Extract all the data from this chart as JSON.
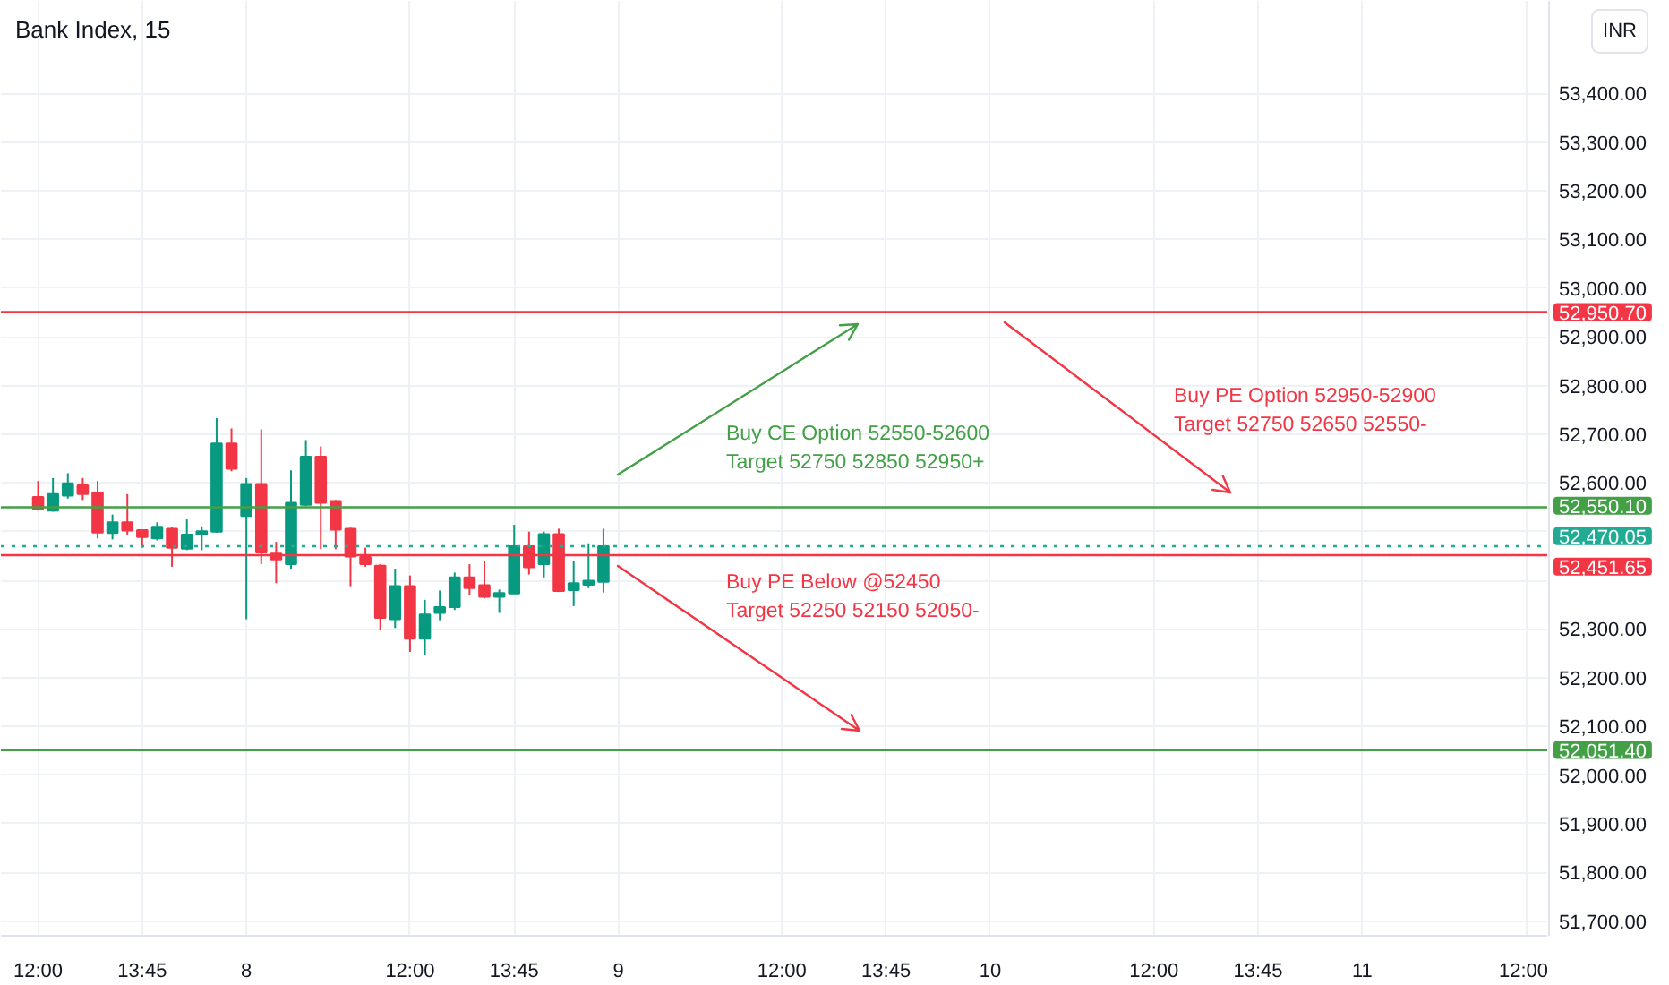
{
  "chart_data": {
    "type": "candlestick",
    "title": "Bank Index, 15",
    "ylabel": "INR",
    "categories": [
      null,
      null,
      "12:00",
      null,
      null,
      null,
      null,
      null,
      null,
      "13:45",
      null,
      null,
      null,
      null,
      null,
      null,
      "8",
      null,
      null,
      null,
      null,
      null,
      null,
      null,
      null,
      null,
      null,
      "12:00",
      null,
      null,
      null,
      null,
      null,
      null,
      "13:45",
      null,
      null,
      null,
      null,
      null,
      null,
      "9",
      null,
      null,
      null,
      null,
      null,
      null,
      null,
      null,
      null,
      null,
      "12:00",
      null,
      null,
      null,
      null,
      null,
      null,
      "13:45",
      null,
      null,
      null,
      null,
      null,
      null,
      "10",
      null,
      null,
      null,
      null,
      null,
      null,
      null,
      null,
      null,
      null,
      "12:00",
      null,
      null,
      null,
      null,
      null,
      null,
      "13:45",
      null,
      null,
      null,
      null,
      null,
      null,
      "11",
      null,
      null,
      null,
      null,
      null,
      null,
      null,
      null,
      null,
      null,
      "12:00",
      null
    ],
    "ohlc": [
      null,
      null,
      [
        52571,
        52604,
        52543,
        52547
      ],
      [
        52543,
        52610,
        52541,
        52577
      ],
      [
        52574,
        52620,
        52568,
        52599
      ],
      [
        52595,
        52610,
        52565,
        52577
      ],
      [
        52580,
        52604,
        52486,
        52498
      ],
      [
        52497,
        52535,
        52484,
        52519
      ],
      [
        52519,
        52577,
        52494,
        52502
      ],
      [
        52503,
        52505,
        52467,
        52489
      ],
      [
        52486,
        52519,
        52482,
        52510
      ],
      [
        52506,
        52509,
        52428,
        52467
      ],
      [
        52465,
        52525,
        52462,
        52494
      ],
      [
        52494,
        52511,
        52462,
        52501
      ],
      [
        52500,
        52733,
        52498,
        52681
      ],
      [
        52681,
        52712,
        52624,
        52629
      ],
      [
        52532,
        52610,
        52320,
        52598
      ],
      [
        52598,
        52710,
        52433,
        52457
      ],
      [
        52455,
        52479,
        52394,
        52443
      ],
      [
        52433,
        52626,
        52424,
        52559
      ],
      [
        52555,
        52688,
        52552,
        52654
      ],
      [
        52654,
        52675,
        52464,
        52559
      ],
      [
        52563,
        52565,
        52464,
        52504
      ],
      [
        52506,
        52508,
        52388,
        52449
      ],
      [
        52448,
        52467,
        52428,
        52433
      ],
      [
        52430,
        52433,
        52298,
        52323
      ],
      [
        52320,
        52424,
        52302,
        52388
      ],
      [
        52388,
        52410,
        52253,
        52280
      ],
      [
        52280,
        52360,
        52247,
        52330
      ],
      [
        52333,
        52379,
        52318,
        52345
      ],
      [
        52345,
        52416,
        52339,
        52406
      ],
      [
        52406,
        52433,
        52369,
        52384
      ],
      [
        52390,
        52440,
        52363,
        52366
      ],
      [
        52366,
        52381,
        52333,
        52374
      ],
      [
        52373,
        52514,
        52372,
        52470
      ],
      [
        52470,
        52500,
        52412,
        52427
      ],
      [
        52433,
        52500,
        52406,
        52495
      ],
      [
        52495,
        52506,
        52376,
        52378
      ],
      [
        52380,
        52440,
        52347,
        52394
      ],
      [
        52391,
        52476,
        52384,
        52399
      ],
      [
        52397,
        52506,
        52375,
        52470.05
      ],
      null,
      null,
      null,
      null,
      null,
      null,
      null,
      null,
      null,
      null,
      null,
      null,
      null,
      null,
      null,
      null,
      null,
      null,
      null,
      null,
      null,
      null,
      null,
      null,
      null,
      null,
      null,
      null,
      null,
      null,
      null,
      null,
      null,
      null,
      null,
      null,
      null,
      null,
      null,
      null,
      null,
      null,
      null,
      null,
      null,
      null,
      null,
      null,
      null,
      null,
      null,
      null,
      null,
      null,
      null,
      null,
      null,
      null,
      null,
      null,
      null,
      null,
      null
    ],
    "colors": [
      null,
      null,
      "#f23645",
      "#089981",
      "#089981",
      "#f23645",
      "#f23645",
      "#089981",
      "#f23645",
      "#f23645",
      "#089981",
      "#f23645",
      "#089981",
      "#089981",
      "#089981",
      "#f23645",
      "#089981",
      "#f23645",
      "#f23645",
      "#089981",
      "#089981",
      "#f23645",
      "#f23645",
      "#f23645",
      "#f23645",
      "#f23645",
      "#089981",
      "#f23645",
      "#089981",
      "#089981",
      "#089981",
      "#f23645",
      "#f23645",
      "#089981",
      "#089981",
      "#f23645",
      "#089981",
      "#f23645",
      "#089981",
      "#089981",
      "#089981",
      null,
      null,
      null,
      null,
      null,
      null,
      null,
      null,
      null,
      null,
      null,
      null,
      null,
      null,
      null,
      null,
      null,
      null,
      null,
      null,
      null,
      null,
      null,
      null,
      null,
      null,
      null,
      null,
      null,
      null,
      null,
      null,
      null,
      null,
      null,
      null,
      null,
      null,
      null,
      null,
      null,
      null,
      null,
      null,
      null,
      null,
      null,
      null,
      null,
      null,
      null,
      null,
      null,
      null,
      null,
      null,
      null,
      null,
      null,
      null,
      null,
      null,
      null
    ],
    "ylim": [
      51670,
      53590
    ],
    "yticks": [
      {
        "value": 51700,
        "label": "51,700.00"
      },
      {
        "value": 51800,
        "label": "51,800.00"
      },
      {
        "value": 51900,
        "label": "51,900.00"
      },
      {
        "value": 52000,
        "label": "52,000.00"
      },
      {
        "value": 52100,
        "label": "52,100.00"
      },
      {
        "value": 52200,
        "label": "52,200.00"
      },
      {
        "value": 52300,
        "label": "52,300.00"
      },
      {
        "value": 52400,
        "label": null
      },
      {
        "value": 52500,
        "label": null
      },
      {
        "value": 52600,
        "label": "52,600.00"
      },
      {
        "value": 52700,
        "label": "52,700.00"
      },
      {
        "value": 52800,
        "label": "52,800.00"
      },
      {
        "value": 52900,
        "label": "52,900.00"
      },
      {
        "value": 53000,
        "label": "53,000.00"
      },
      {
        "value": 53100,
        "label": "53,100.00"
      },
      {
        "value": 53200,
        "label": "53,200.00"
      },
      {
        "value": 53300,
        "label": "53,300.00"
      },
      {
        "value": 53400,
        "label": "53,400.00"
      }
    ],
    "grid": true,
    "ref_lines": [
      {
        "axis": "y",
        "value": 52550.1,
        "label": "52,550.10",
        "color": "#43a047"
      },
      {
        "axis": "y",
        "value": 52950.7,
        "label": "52,950.70",
        "color": "#f23645"
      },
      {
        "axis": "y",
        "value": 52451.65,
        "label": "52,451.65",
        "color": "#f23645"
      },
      {
        "axis": "y",
        "value": 52051.4,
        "label": "52,051.40",
        "color": "#43a047"
      },
      {
        "axis": "y",
        "value": 52470.05,
        "label": "52,470.05",
        "color": "#22ab94",
        "line_style": "dotted"
      }
    ],
    "annotations": [
      "Buy CE Option 52550-52600",
      "Target  52750 52850 52950+",
      "Buy PE Option 52950-52900",
      "Target 52750 52650 52550-",
      "Buy PE Below @52450",
      "Target 52250 52150 52050-"
    ]
  }
}
